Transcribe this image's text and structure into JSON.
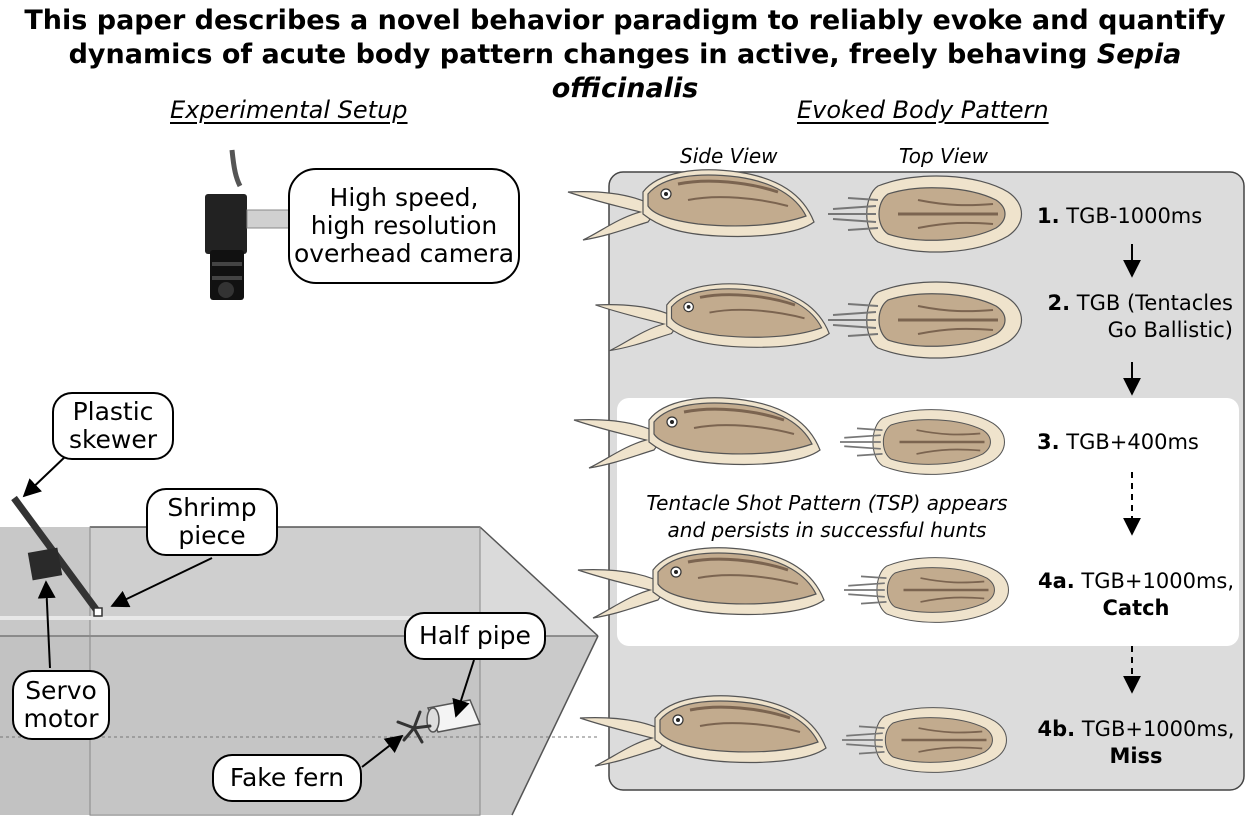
{
  "title": {
    "line1": "This paper describes a novel behavior paradigm to reliably evoke and quantify",
    "line2_prefix": "dynamics of acute body pattern changes in active, freely behaving ",
    "line2_species": "Sepia officinalis"
  },
  "left_section": {
    "heading": "Experimental Setup",
    "camera_callout": [
      "High speed,",
      "high resolution",
      "overhead camera"
    ],
    "callouts": {
      "skewer": [
        "Plastic",
        "skewer"
      ],
      "shrimp": [
        "Shrimp",
        "piece"
      ],
      "servo": [
        "Servo",
        "motor"
      ],
      "halfpipe": [
        "Half pipe"
      ],
      "fern": [
        "Fake fern"
      ]
    }
  },
  "right_section": {
    "heading": "Evoked Body Pattern",
    "side_view": "Side View",
    "top_view": "Top View",
    "tsp_note": [
      "Tentacle Shot Pattern (TSP) appears",
      "and persists in successful hunts"
    ],
    "steps": [
      {
        "num": "1.",
        "lines": [
          "TGB-1000ms"
        ]
      },
      {
        "num": "2.",
        "lines": [
          "TGB (Tentacles",
          "Go Ballistic)"
        ]
      },
      {
        "num": "3.",
        "lines": [
          "TGB+400ms"
        ]
      },
      {
        "num": "4a.",
        "lines": [
          "TGB+1000ms,"
        ],
        "outcome": "Catch"
      },
      {
        "num": "4b.",
        "lines": [
          "TGB+1000ms,"
        ],
        "outcome": "Miss"
      }
    ]
  },
  "colors": {
    "panel_bg": "#dcdcdc",
    "highlight_bg": "#ffffff",
    "cuttlefish_body": "#c2ab8e",
    "cuttlefish_dark": "#7b6450",
    "cuttlefish_fin": "#efe3cc",
    "tank_glass": "#d7d7d7"
  }
}
